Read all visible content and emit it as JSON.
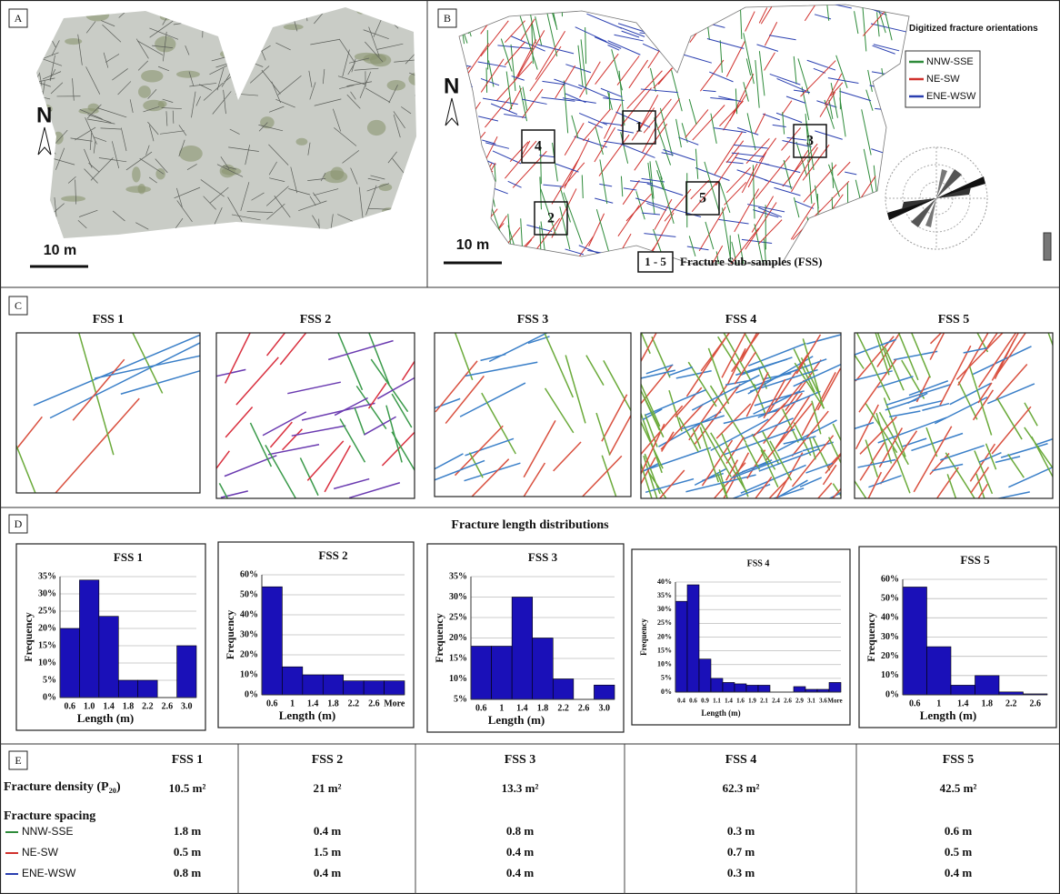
{
  "panels": {
    "a": {
      "label": "A",
      "north": "N",
      "scale": "10 m"
    },
    "b": {
      "label": "B",
      "north": "N",
      "scale": "10 m",
      "legend_title": "Digitized fracture orientations",
      "legend": [
        {
          "name": "NNW-SSE",
          "color": "#2e8b3a"
        },
        {
          "name": "NE-SW",
          "color": "#d0312d"
        },
        {
          "name": "ENE-WSW",
          "color": "#2a3fb0"
        }
      ],
      "subsamples": [
        "1",
        "2",
        "3",
        "4",
        "5"
      ],
      "key_box": "1 - 5",
      "key_text": "Fracture Sub-samples (FSS)"
    },
    "c": {
      "label": "C",
      "titles": [
        "FSS 1",
        "FSS 2",
        "FSS 3",
        "FSS 4",
        "FSS 5"
      ]
    },
    "d": {
      "label": "D",
      "title": "Fracture length distributions"
    },
    "e": {
      "label": "E"
    }
  },
  "chart_data": [
    {
      "type": "bar",
      "title": "FSS 1",
      "xlabel": "Length (m)",
      "ylabel": "Frequency",
      "color": "#1a10b8",
      "categories": [
        "0.6",
        "1.0",
        "1.4",
        "1.8",
        "2.2",
        "2.6",
        "3.0"
      ],
      "values": [
        20,
        34,
        23.5,
        5,
        5,
        0,
        15
      ],
      "ylim": [
        0,
        35
      ],
      "yticks": [
        {
          "value": 0,
          "label": "0%"
        },
        {
          "value": 5,
          "label": "5%"
        },
        {
          "value": 10,
          "label": "10%"
        },
        {
          "value": 15,
          "label": "15%"
        },
        {
          "value": 20,
          "label": "20%"
        },
        {
          "value": 25,
          "label": "25%"
        },
        {
          "value": 30,
          "label": "30%"
        },
        {
          "value": 35,
          "label": "35%"
        }
      ],
      "grid": true
    },
    {
      "type": "bar",
      "title": "FSS 2",
      "xlabel": "Length (m)",
      "ylabel": "Frequency",
      "color": "#1a10b8",
      "categories": [
        "0.6",
        "1",
        "1.4",
        "1.8",
        "2.2",
        "2.6",
        "More"
      ],
      "values": [
        54,
        14,
        10,
        10,
        7,
        7,
        7
      ],
      "ylim": [
        0,
        60
      ],
      "yticks": [
        {
          "value": 0,
          "label": "0%"
        },
        {
          "value": 10,
          "label": "10%"
        },
        {
          "value": 20,
          "label": "20%"
        },
        {
          "value": 30,
          "label": "30%"
        },
        {
          "value": 40,
          "label": "40%"
        },
        {
          "value": 50,
          "label": "50%"
        },
        {
          "value": 60,
          "label": "60%"
        }
      ],
      "grid": true
    },
    {
      "type": "bar",
      "title": "FSS 3",
      "xlabel": "Length (m)",
      "ylabel": "Frequency",
      "color": "#1a10b8",
      "categories": [
        "0.6",
        "1",
        "1.4",
        "1.8",
        "2.2",
        "2.6",
        "3.0"
      ],
      "values": [
        18,
        18,
        30,
        20,
        10,
        5,
        8.5
      ],
      "ylim": [
        5,
        35
      ],
      "yticks": [
        {
          "value": 5,
          "label": "5%"
        },
        {
          "value": 10,
          "label": "10%"
        },
        {
          "value": 15,
          "label": "15%"
        },
        {
          "value": 20,
          "label": "20%"
        },
        {
          "value": 25,
          "label": "25%"
        },
        {
          "value": 30,
          "label": "30%"
        },
        {
          "value": 35,
          "label": "35%"
        }
      ],
      "grid": true
    },
    {
      "type": "bar",
      "title": "FSS 4",
      "xlabel": "Length (m)",
      "ylabel": "Frequency",
      "color": "#1a10b8",
      "categories": [
        "0.4",
        "0.6",
        "0.9",
        "1.1",
        "1.4",
        "1.6",
        "1.9",
        "2.1",
        "2.4",
        "2.6",
        "2.9",
        "3.1",
        "3.6",
        "More"
      ],
      "values": [
        33,
        39,
        12,
        5,
        3.5,
        3,
        2.5,
        2.5,
        0,
        0,
        2,
        1,
        1,
        3.5
      ],
      "ylim": [
        0,
        40
      ],
      "yticks": [
        {
          "value": 0,
          "label": "0%"
        },
        {
          "value": 5,
          "label": "5%"
        },
        {
          "value": 10,
          "label": "10%"
        },
        {
          "value": 15,
          "label": "15%"
        },
        {
          "value": 20,
          "label": "20%"
        },
        {
          "value": 25,
          "label": "25%"
        },
        {
          "value": 30,
          "label": "30%"
        },
        {
          "value": 35,
          "label": "35%"
        },
        {
          "value": 40,
          "label": "40%"
        }
      ],
      "grid": true
    },
    {
      "type": "bar",
      "title": "FSS 5",
      "xlabel": "Length (m)",
      "ylabel": "Frequency",
      "color": "#1a10b8",
      "categories": [
        "0.6",
        "1",
        "1.4",
        "1.8",
        "2.2",
        "2.6"
      ],
      "values": [
        56,
        25,
        5,
        10,
        1.5,
        0.5
      ],
      "ylim": [
        0,
        60
      ],
      "yticks": [
        {
          "value": 0,
          "label": "0%"
        },
        {
          "value": 10,
          "label": "10%"
        },
        {
          "value": 20,
          "label": "20%"
        },
        {
          "value": 30,
          "label": "30%"
        },
        {
          "value": 40,
          "label": "40%"
        },
        {
          "value": 50,
          "label": "50%"
        },
        {
          "value": 60,
          "label": "60%"
        }
      ],
      "grid": true
    }
  ],
  "table": {
    "columns": [
      "FSS 1",
      "FSS 2",
      "FSS 3",
      "FSS 4",
      "FSS 5"
    ],
    "density_label": "Fracture density (P₂₀)",
    "density": [
      "10.5 m²",
      "21 m²",
      "13.3 m²",
      "62.3 m²",
      "42.5 m²"
    ],
    "spacing_label": "Fracture spacing",
    "spacing": [
      {
        "name": "NNW-SSE",
        "color": "#2e8b3a",
        "values": [
          "1.8 m",
          "0.4 m",
          "0.8 m",
          "0.3 m",
          "0.6 m"
        ]
      },
      {
        "name": "NE-SW",
        "color": "#d0312d",
        "values": [
          "0.5 m",
          "1.5 m",
          "0.4 m",
          "0.7 m",
          "0.5 m"
        ]
      },
      {
        "name": "ENE-WSW",
        "color": "#2a3fb0",
        "values": [
          "0.8 m",
          "0.4 m",
          "0.4 m",
          "0.3 m",
          "0.4 m"
        ]
      }
    ]
  }
}
